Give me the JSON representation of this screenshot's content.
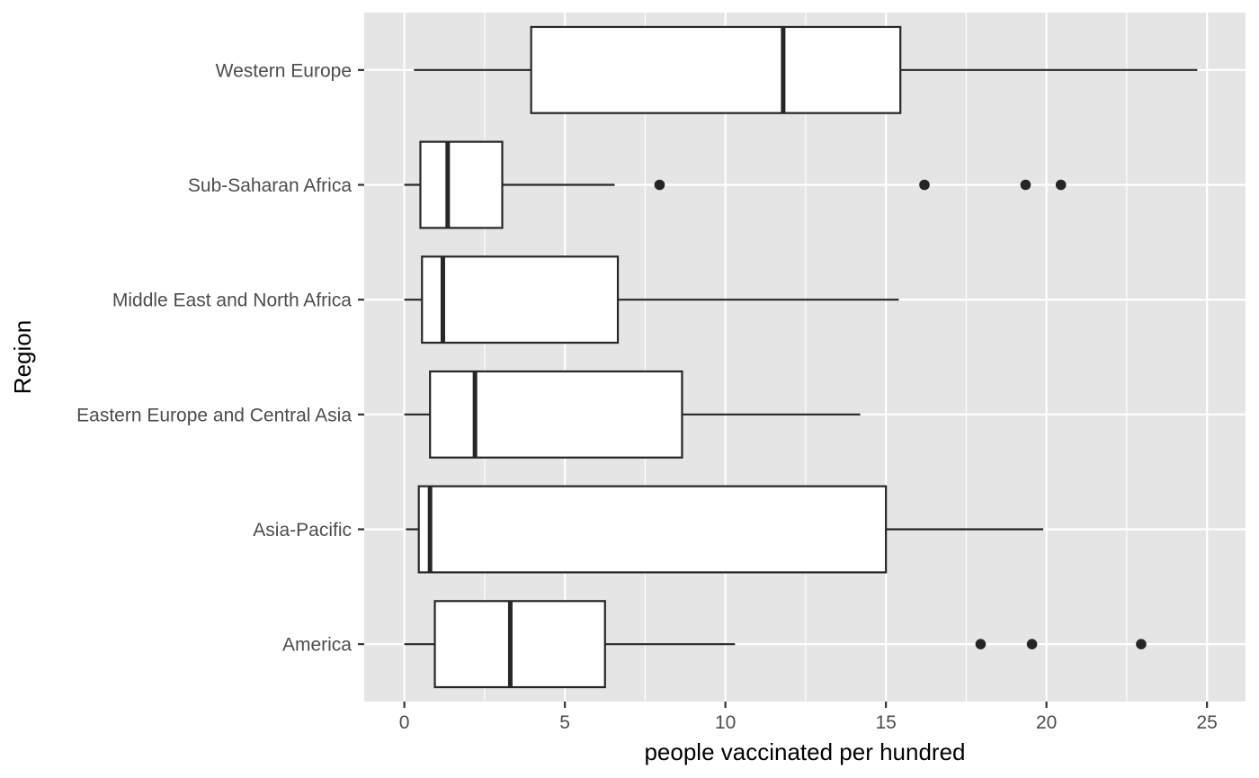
{
  "chart_data": {
    "type": "boxplot",
    "orientation": "horizontal",
    "xlabel": "people vaccinated per hundred",
    "ylabel": "Region",
    "xlim": [
      -1.25,
      26.2
    ],
    "x_ticks": [
      0,
      5,
      10,
      15,
      20,
      25
    ],
    "grid": true,
    "colors": {
      "panel_background": "#e5e5e5",
      "grid_line": "#ffffff",
      "box_fill": "#ffffff",
      "box_stroke": "#262626",
      "outlier": "#262626"
    },
    "categories": [
      "America",
      "Asia-Pacific",
      "Eastern Europe and Central Asia",
      "Middle East and North Africa",
      "Sub-Saharan Africa",
      "Western Europe"
    ],
    "boxes": [
      {
        "region": "America",
        "whisker_low": 0.0,
        "q1": 0.95,
        "median": 3.3,
        "q3": 6.25,
        "whisker_high": 10.3,
        "outliers": [
          17.95,
          19.55,
          22.95
        ]
      },
      {
        "region": "Asia-Pacific",
        "whisker_low": 0.05,
        "q1": 0.45,
        "median": 0.8,
        "q3": 15.0,
        "whisker_high": 19.9,
        "outliers": []
      },
      {
        "region": "Eastern Europe and Central Asia",
        "whisker_low": 0.0,
        "q1": 0.8,
        "median": 2.2,
        "q3": 8.65,
        "whisker_high": 14.2,
        "outliers": []
      },
      {
        "region": "Middle East and North Africa",
        "whisker_low": 0.0,
        "q1": 0.55,
        "median": 1.2,
        "q3": 6.65,
        "whisker_high": 15.4,
        "outliers": []
      },
      {
        "region": "Sub-Saharan Africa",
        "whisker_low": 0.0,
        "q1": 0.5,
        "median": 1.35,
        "q3": 3.05,
        "whisker_high": 6.55,
        "outliers": [
          7.95,
          16.2,
          19.35,
          20.45
        ]
      },
      {
        "region": "Western Europe",
        "whisker_low": 0.3,
        "q1": 3.95,
        "median": 11.8,
        "q3": 15.45,
        "whisker_high": 24.7,
        "outliers": []
      }
    ]
  }
}
